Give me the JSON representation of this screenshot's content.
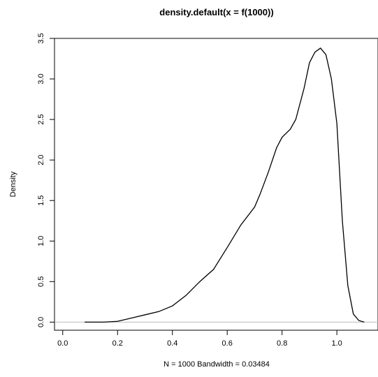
{
  "chart_data": {
    "type": "line",
    "title": "density.default(x = f(1000))",
    "xlabel": "N = 1000   Bandwidth = 0.03484",
    "ylabel": "Density",
    "xlim": [
      -0.03,
      1.15
    ],
    "ylim": [
      -0.1,
      3.5
    ],
    "xticks": [
      0.0,
      0.2,
      0.4,
      0.6,
      0.8,
      1.0
    ],
    "xtick_labels": [
      "0.0",
      "0.2",
      "0.4",
      "0.6",
      "0.8",
      "1.0"
    ],
    "yticks": [
      0.0,
      0.5,
      1.0,
      1.5,
      2.0,
      2.5,
      3.0,
      3.5
    ],
    "ytick_labels": [
      "0.0",
      "0.5",
      "1.0",
      "1.5",
      "2.0",
      "2.5",
      "3.0",
      "3.5"
    ],
    "baseline": 0.0,
    "grid": false,
    "series": [
      {
        "x": [
          0.08,
          0.15,
          0.2,
          0.25,
          0.3,
          0.35,
          0.4,
          0.45,
          0.5,
          0.55,
          0.6,
          0.65,
          0.7,
          0.72,
          0.75,
          0.78,
          0.8,
          0.83,
          0.85,
          0.88,
          0.9,
          0.92,
          0.94,
          0.96,
          0.98,
          1.0,
          1.02,
          1.04,
          1.06,
          1.08,
          1.1
        ],
        "y": [
          0.0,
          0.0,
          0.01,
          0.05,
          0.09,
          0.13,
          0.2,
          0.33,
          0.5,
          0.65,
          0.92,
          1.2,
          1.42,
          1.58,
          1.85,
          2.15,
          2.28,
          2.38,
          2.5,
          2.88,
          3.2,
          3.33,
          3.38,
          3.3,
          3.0,
          2.45,
          1.25,
          0.45,
          0.1,
          0.02,
          0.0
        ]
      }
    ]
  }
}
